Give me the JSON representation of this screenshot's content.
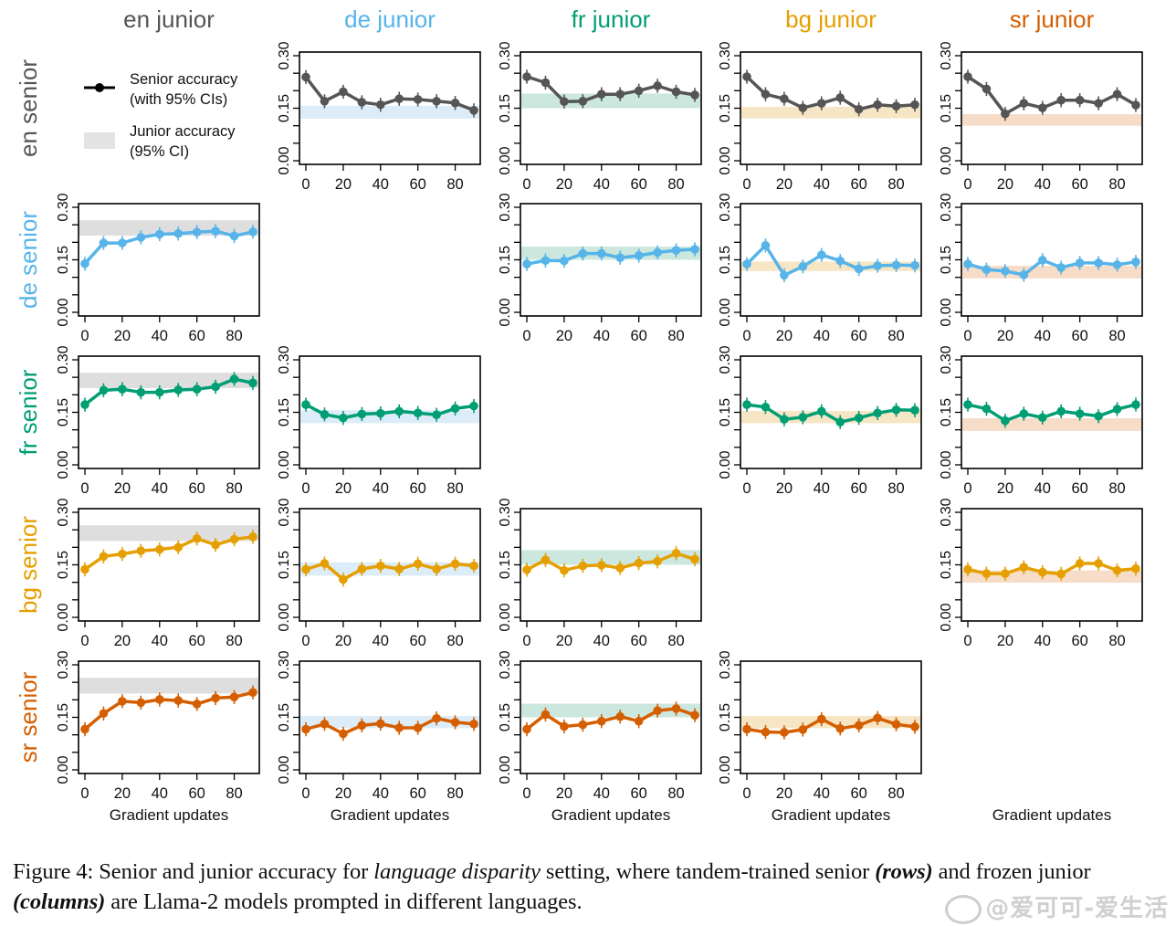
{
  "chart_data": {
    "type": "line",
    "title": "Senior and junior accuracy for language disparity setting",
    "layout": "5x5 grid of panels (rows: senior language, columns: junior language); diagonal panels empty",
    "column_labels": [
      "en junior",
      "de junior",
      "fr junior",
      "bg junior",
      "sr junior"
    ],
    "row_labels": [
      "en senior",
      "de senior",
      "fr senior",
      "bg senior",
      "sr senior"
    ],
    "language_colors": {
      "en": "#555555",
      "de": "#56B4E9",
      "fr": "#009E73",
      "bg": "#E69F00",
      "sr": "#D55E00"
    },
    "band_colors": {
      "en": "#dedede",
      "de": "#dcecf8",
      "fr": "#cce8de",
      "bg": "#f7e6c6",
      "sr": "#f7dcc8"
    },
    "xlabel": "Gradient updates",
    "ylabel": "",
    "x": [
      0,
      10,
      20,
      30,
      40,
      50,
      60,
      70,
      80,
      90
    ],
    "xlim": [
      0,
      90
    ],
    "xticks": [
      0,
      20,
      40,
      60,
      80
    ],
    "ylim": [
      0.0,
      0.3
    ],
    "yticks": [
      0.0,
      0.05,
      0.1,
      0.15,
      0.2,
      0.25,
      0.3
    ],
    "ytick_labels": [
      "0.00",
      "",
      "",
      "0.15",
      "",
      "",
      "0.30"
    ],
    "legend": {
      "placement": "top-left (in empty en senior / en junior cell)",
      "entries": [
        {
          "label_line1": "Senior accuracy",
          "label_line2": "(with 95% CIs)",
          "marker": "line-with-dot"
        },
        {
          "label_line1": "Junior accuracy",
          "label_line2": "(95% CI)",
          "marker": "shaded-band"
        }
      ]
    },
    "panels": [
      {
        "senior": "en",
        "junior": "de",
        "senior_acc": [
          0.239,
          0.17,
          0.197,
          0.167,
          0.16,
          0.177,
          0.175,
          0.17,
          0.165,
          0.144
        ],
        "junior_ci": [
          0.12,
          0.157
        ]
      },
      {
        "senior": "en",
        "junior": "fr",
        "senior_acc": [
          0.24,
          0.223,
          0.169,
          0.17,
          0.19,
          0.19,
          0.2,
          0.214,
          0.197,
          0.188
        ],
        "junior_ci": [
          0.15,
          0.192
        ]
      },
      {
        "senior": "en",
        "junior": "bg",
        "senior_acc": [
          0.24,
          0.19,
          0.177,
          0.151,
          0.164,
          0.18,
          0.147,
          0.16,
          0.156,
          0.16
        ],
        "junior_ci": [
          0.121,
          0.154
        ]
      },
      {
        "senior": "en",
        "junior": "sr",
        "senior_acc": [
          0.24,
          0.205,
          0.134,
          0.164,
          0.151,
          0.173,
          0.173,
          0.164,
          0.19,
          0.159
        ],
        "junior_ci": [
          0.1,
          0.133
        ]
      },
      {
        "senior": "de",
        "junior": "en",
        "senior_acc": [
          0.139,
          0.198,
          0.198,
          0.214,
          0.223,
          0.225,
          0.229,
          0.232,
          0.218,
          0.23
        ],
        "junior_ci": [
          0.219,
          0.263
        ]
      },
      {
        "senior": "de",
        "junior": "fr",
        "senior_acc": [
          0.138,
          0.148,
          0.147,
          0.168,
          0.168,
          0.156,
          0.162,
          0.171,
          0.177,
          0.18
        ],
        "junior_ci": [
          0.15,
          0.188
        ]
      },
      {
        "senior": "de",
        "junior": "bg",
        "senior_acc": [
          0.138,
          0.191,
          0.106,
          0.131,
          0.164,
          0.147,
          0.124,
          0.133,
          0.135,
          0.134
        ],
        "junior_ci": [
          0.118,
          0.145
        ]
      },
      {
        "senior": "de",
        "junior": "sr",
        "senior_acc": [
          0.138,
          0.122,
          0.118,
          0.107,
          0.149,
          0.128,
          0.141,
          0.141,
          0.136,
          0.144
        ],
        "junior_ci": [
          0.097,
          0.133
        ]
      },
      {
        "senior": "fr",
        "junior": "en",
        "senior_acc": [
          0.172,
          0.213,
          0.216,
          0.207,
          0.207,
          0.214,
          0.216,
          0.223,
          0.245,
          0.234
        ],
        "junior_ci": [
          0.219,
          0.263
        ]
      },
      {
        "senior": "fr",
        "junior": "de",
        "senior_acc": [
          0.172,
          0.144,
          0.134,
          0.145,
          0.147,
          0.153,
          0.148,
          0.143,
          0.161,
          0.168
        ],
        "junior_ci": [
          0.119,
          0.156
        ]
      },
      {
        "senior": "fr",
        "junior": "bg",
        "senior_acc": [
          0.172,
          0.165,
          0.13,
          0.136,
          0.153,
          0.122,
          0.134,
          0.148,
          0.157,
          0.156
        ],
        "junior_ci": [
          0.119,
          0.154
        ]
      },
      {
        "senior": "fr",
        "junior": "sr",
        "senior_acc": [
          0.172,
          0.16,
          0.126,
          0.146,
          0.135,
          0.153,
          0.146,
          0.139,
          0.159,
          0.172
        ],
        "junior_ci": [
          0.097,
          0.133
        ]
      },
      {
        "senior": "bg",
        "junior": "en",
        "senior_acc": [
          0.137,
          0.174,
          0.181,
          0.19,
          0.194,
          0.2,
          0.225,
          0.207,
          0.223,
          0.23
        ],
        "junior_ci": [
          0.218,
          0.263
        ]
      },
      {
        "senior": "bg",
        "junior": "de",
        "senior_acc": [
          0.137,
          0.154,
          0.108,
          0.138,
          0.147,
          0.138,
          0.153,
          0.138,
          0.153,
          0.147
        ],
        "junior_ci": [
          0.119,
          0.157
        ]
      },
      {
        "senior": "bg",
        "junior": "fr",
        "senior_acc": [
          0.136,
          0.164,
          0.134,
          0.147,
          0.149,
          0.141,
          0.155,
          0.16,
          0.183,
          0.166
        ],
        "junior_ci": [
          0.15,
          0.192
        ]
      },
      {
        "senior": "bg",
        "junior": "sr",
        "senior_acc": [
          0.137,
          0.125,
          0.125,
          0.143,
          0.129,
          0.124,
          0.154,
          0.154,
          0.134,
          0.139
        ],
        "junior_ci": [
          0.099,
          0.134
        ]
      },
      {
        "senior": "sr",
        "junior": "en",
        "senior_acc": [
          0.116,
          0.161,
          0.196,
          0.192,
          0.201,
          0.198,
          0.188,
          0.205,
          0.208,
          0.221
        ],
        "junior_ci": [
          0.218,
          0.263
        ]
      },
      {
        "senior": "sr",
        "junior": "de",
        "senior_acc": [
          0.116,
          0.131,
          0.103,
          0.127,
          0.132,
          0.12,
          0.12,
          0.147,
          0.136,
          0.131
        ],
        "junior_ci": [
          0.119,
          0.154
        ]
      },
      {
        "senior": "sr",
        "junior": "fr",
        "senior_acc": [
          0.116,
          0.158,
          0.124,
          0.129,
          0.139,
          0.152,
          0.139,
          0.169,
          0.175,
          0.156
        ],
        "junior_ci": [
          0.15,
          0.189
        ]
      },
      {
        "senior": "sr",
        "junior": "bg",
        "senior_acc": [
          0.116,
          0.108,
          0.107,
          0.115,
          0.145,
          0.118,
          0.127,
          0.148,
          0.13,
          0.123
        ],
        "junior_ci": [
          0.119,
          0.154
        ]
      }
    ],
    "ci_halfwidth_approx": 0.02
  },
  "caption": {
    "prefix": "Figure 4: Senior and junior accuracy for ",
    "italic_term": "language disparity",
    "middle1": " setting, where tandem-trained senior ",
    "rows_term": "(rows)",
    "middle2": " and frozen junior ",
    "columns_term": "(columns)",
    "suffix": " are Llama-2 models prompted in different languages."
  },
  "watermark": "@爱可可-爱生活"
}
